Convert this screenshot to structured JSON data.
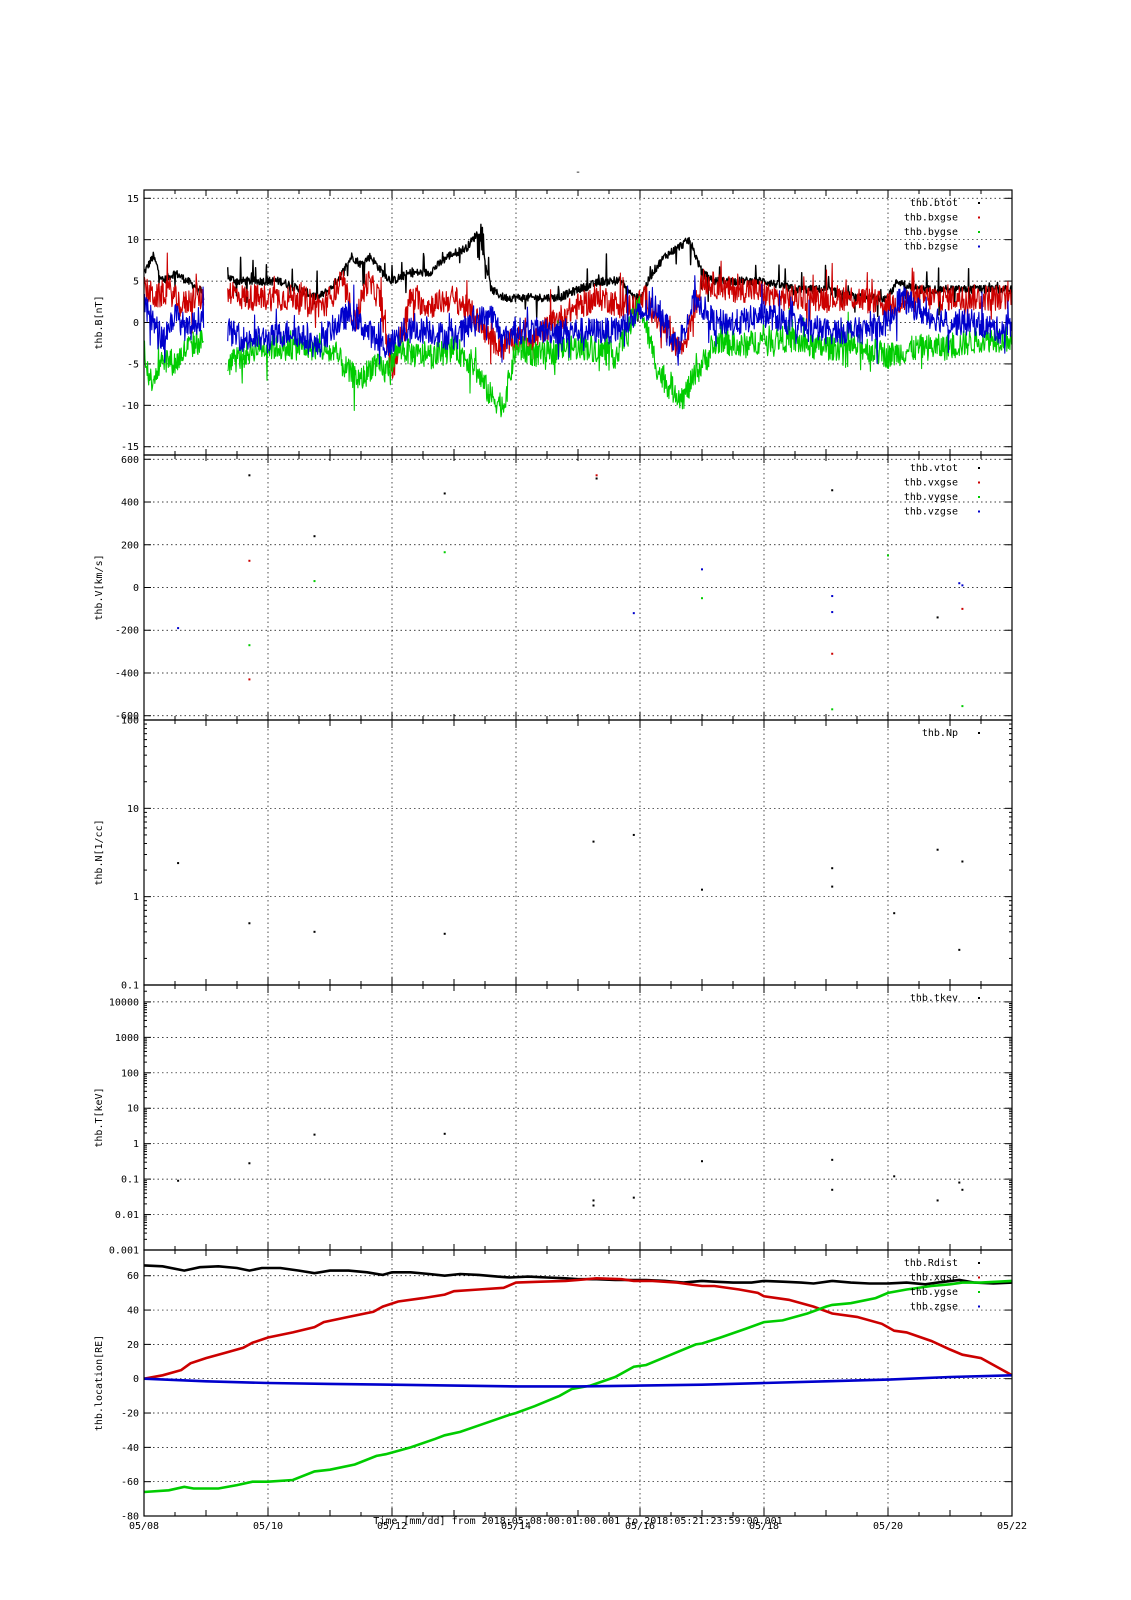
{
  "figure": {
    "title": "-",
    "xlabel": "Time [mm/dd]  from 2018:05:08:00:01:00.001  to  2018:05:21:23:59:00.001",
    "x_range_days": [
      0,
      14
    ],
    "x_tick_values": [
      0,
      2,
      4,
      6,
      8,
      10,
      12,
      14
    ],
    "x_tick_labels": [
      "05/08",
      "05/10",
      "05/12",
      "05/14",
      "05/16",
      "05/18",
      "05/20",
      "05/22"
    ]
  },
  "colors": {
    "black": "#000000",
    "red": "#cc0000",
    "green": "#00cc00",
    "blue": "#0000cc"
  },
  "chart_data": [
    {
      "type": "scatter",
      "ylabel": "thb.B[nT]",
      "scale": "linear",
      "ylim": [
        -16,
        16
      ],
      "yticks": [
        -15,
        -10,
        -5,
        0,
        5,
        10,
        15
      ],
      "ytick_labels": [
        "-15",
        "-10",
        "-5",
        "0",
        "5",
        "10",
        "15"
      ],
      "legend_position": "top-right",
      "series": [
        {
          "name": "thb.btot",
          "color": "#000000",
          "style": "dense",
          "x": [
            0,
            0.15,
            0.3,
            0.5,
            0.7,
            0.9,
            0.97,
            null,
            1.35,
            1.5,
            1.8,
            2.2,
            2.5,
            2.8,
            3.0,
            3.2,
            3.35,
            3.5,
            3.65,
            3.85,
            4.0,
            4.3,
            4.6,
            4.9,
            5.2,
            5.4,
            5.6,
            5.8,
            6.0,
            6.3,
            6.7,
            7.0,
            7.4,
            7.7,
            7.9,
            8.0,
            8.2,
            8.4,
            8.6,
            8.8,
            9.0,
            9.2,
            9.4,
            9.6,
            10.0,
            10.5,
            11.0,
            11.5,
            12.0,
            12.15,
            12.5,
            13.0,
            13.5,
            14.0
          ],
          "y": [
            6,
            8,
            5,
            6,
            5,
            4,
            3,
            null,
            5.5,
            5,
            5,
            5,
            4,
            3,
            4,
            6,
            8,
            7,
            8,
            6,
            5,
            6,
            6,
            8,
            9,
            11,
            4,
            3,
            3,
            3,
            3,
            4,
            5,
            5,
            3,
            3,
            6,
            8,
            9,
            10,
            6,
            5,
            5,
            5,
            5,
            4,
            4,
            3,
            3,
            5,
            4,
            4,
            4,
            4
          ]
        },
        {
          "name": "thb.bxgse",
          "color": "#cc0000",
          "style": "dense",
          "x": [
            0,
            0.2,
            0.4,
            0.6,
            0.8,
            0.97,
            null,
            1.35,
            1.6,
            2.0,
            2.5,
            2.9,
            3.2,
            3.4,
            3.6,
            3.8,
            4.0,
            4.3,
            4.6,
            5.0,
            5.3,
            5.6,
            5.8,
            6.0,
            6.3,
            6.6,
            7.0,
            7.4,
            7.7,
            7.9,
            8.1,
            8.3,
            8.5,
            8.7,
            9.0,
            9.4,
            9.8,
            10.2,
            10.6,
            11.0,
            11.5,
            12.0,
            12.5,
            13.0,
            13.5,
            14.0
          ],
          "y": [
            4,
            3,
            4,
            2,
            3,
            3,
            null,
            4,
            3,
            3,
            3,
            2,
            5,
            0,
            5,
            3,
            -6,
            3,
            2,
            3,
            1,
            -2,
            -3,
            -2,
            -2,
            0,
            2,
            3,
            2,
            2,
            3,
            0,
            -2,
            -3,
            5,
            4,
            4,
            3,
            3,
            3,
            3,
            2,
            3,
            3,
            3,
            3
          ]
        },
        {
          "name": "thb.bygse",
          "color": "#00cc00",
          "style": "dense",
          "x": [
            0,
            0.1,
            0.2,
            0.3,
            0.5,
            0.7,
            0.97,
            null,
            1.35,
            1.6,
            1.8,
            2.0,
            2.4,
            2.8,
            3.1,
            3.3,
            3.5,
            3.7,
            3.9,
            4.1,
            4.4,
            4.7,
            5.0,
            5.3,
            5.6,
            5.8,
            6.0,
            6.4,
            6.8,
            7.2,
            7.6,
            8.0,
            8.3,
            8.5,
            8.7,
            9.0,
            9.3,
            9.6,
            10.0,
            10.4,
            10.8,
            11.2,
            11.6,
            12.0,
            12.5,
            13.0,
            13.5,
            14.0
          ],
          "y": [
            -3,
            -7,
            -6,
            -4,
            -5,
            -3,
            -2,
            null,
            -5,
            -4,
            -3,
            -3,
            -3,
            -3,
            -4,
            -6,
            -7,
            -5,
            -6,
            -3,
            -4,
            -4,
            -3,
            -5,
            -9,
            -10,
            -3,
            -4,
            -3,
            -3,
            -4,
            2,
            -6,
            -8,
            -9,
            -5,
            -2,
            -3,
            -2,
            -2,
            -3,
            -3,
            -3,
            -4,
            -3,
            -3,
            -2,
            -2
          ]
        },
        {
          "name": "thb.bzgse",
          "color": "#0000cc",
          "style": "dense",
          "x": [
            0,
            0.15,
            0.3,
            0.5,
            0.7,
            0.97,
            null,
            1.35,
            1.6,
            2.0,
            2.4,
            2.8,
            3.0,
            3.3,
            3.6,
            3.9,
            4.2,
            4.6,
            5.0,
            5.3,
            5.6,
            5.8,
            6.0,
            6.4,
            6.8,
            7.2,
            7.6,
            8.0,
            8.3,
            8.6,
            8.9,
            9.2,
            9.6,
            10.0,
            10.4,
            10.8,
            11.2,
            11.6,
            12.0,
            12.2,
            12.6,
            13.0,
            13.4,
            13.8,
            14.0
          ],
          "y": [
            2,
            0,
            -2,
            1,
            -1,
            1,
            null,
            -1,
            -2,
            -2,
            -1,
            -3,
            -1,
            1,
            -1,
            -3,
            -1,
            -1,
            -2,
            0,
            1,
            -2,
            -1,
            -1,
            -1,
            -1,
            -1,
            1,
            2,
            -3,
            3,
            0,
            0,
            1,
            0,
            -1,
            -1,
            -1,
            0,
            3,
            1,
            0,
            0,
            -1,
            0
          ]
        }
      ]
    },
    {
      "type": "scatter",
      "ylabel": "thb.V[km/s]",
      "scale": "linear",
      "ylim": [
        -620,
        620
      ],
      "yticks": [
        -600,
        -400,
        -200,
        0,
        200,
        400,
        600
      ],
      "ytick_labels": [
        "-600",
        "-400",
        "-200",
        "0",
        "200",
        "400",
        "600"
      ],
      "legend_position": "top-right",
      "series": [
        {
          "name": "thb.vtot",
          "color": "#000000",
          "style": "points",
          "x": [
            1.7,
            2.75,
            4.85,
            7.3,
            11.1,
            12.8
          ],
          "y": [
            525,
            240,
            440,
            510,
            455,
            -140
          ]
        },
        {
          "name": "thb.vxgse",
          "color": "#cc0000",
          "style": "points",
          "x": [
            1.7,
            1.7,
            7.3,
            11.1,
            13.2
          ],
          "y": [
            125,
            -430,
            525,
            -310,
            -100
          ]
        },
        {
          "name": "thb.vygse",
          "color": "#00cc00",
          "style": "points",
          "x": [
            1.7,
            2.75,
            4.85,
            9.0,
            11.1,
            13.2,
            12.0
          ],
          "y": [
            -270,
            30,
            165,
            -50,
            -570,
            -555,
            150
          ]
        },
        {
          "name": "thb.vzgse",
          "color": "#0000cc",
          "style": "points",
          "x": [
            0.55,
            7.9,
            11.1,
            11.1,
            13.15,
            13.2,
            9.0
          ],
          "y": [
            -190,
            -120,
            -40,
            -115,
            20,
            10,
            85
          ]
        }
      ]
    },
    {
      "type": "scatter",
      "ylabel": "thb.N[1/cc]",
      "scale": "log",
      "ylim": [
        0.1,
        100
      ],
      "yticks": [
        0.1,
        1,
        10,
        100
      ],
      "ytick_labels": [
        "0.1",
        "1",
        "10",
        "100"
      ],
      "legend_position": "top-right",
      "series": [
        {
          "name": "thb.Np",
          "color": "#000000",
          "style": "points",
          "x": [
            0.55,
            1.7,
            2.75,
            4.85,
            7.25,
            7.9,
            9.0,
            11.1,
            11.1,
            12.1,
            12.8,
            13.15,
            13.2
          ],
          "y": [
            2.4,
            0.5,
            0.4,
            0.38,
            4.2,
            5.0,
            1.2,
            2.1,
            1.3,
            0.65,
            3.4,
            0.25,
            2.5
          ]
        }
      ]
    },
    {
      "type": "scatter",
      "ylabel": "thb.T[keV]",
      "scale": "log",
      "ylim": [
        0.001,
        30000
      ],
      "yticks": [
        0.001,
        0.01,
        0.1,
        1,
        10,
        100,
        1000,
        10000
      ],
      "ytick_labels": [
        "0.001",
        "0.01",
        "0.1",
        "1",
        "10",
        "100",
        "1000",
        "10000"
      ],
      "legend_position": "top-right",
      "series": [
        {
          "name": "thb.tkev",
          "color": "#000000",
          "style": "points",
          "x": [
            0.55,
            1.7,
            2.75,
            4.85,
            7.25,
            7.25,
            7.9,
            9.0,
            11.1,
            11.1,
            12.1,
            12.8,
            13.2,
            13.15
          ],
          "y": [
            0.09,
            0.28,
            1.8,
            1.9,
            0.025,
            0.018,
            0.03,
            0.32,
            0.35,
            0.05,
            0.12,
            0.025,
            0.05,
            0.08
          ]
        }
      ]
    },
    {
      "type": "line",
      "ylabel": "thb.location[RE]",
      "scale": "linear",
      "ylim": [
        -80,
        75
      ],
      "yticks": [
        -80,
        -60,
        -40,
        -20,
        0,
        20,
        40,
        60
      ],
      "ytick_labels": [
        "-80",
        "-60",
        "-40",
        "-20",
        "0",
        "20",
        "40",
        "60"
      ],
      "legend_position": "top-right",
      "series": [
        {
          "name": "thb.Rdist",
          "color": "#000000",
          "style": "line",
          "x": [
            0,
            0.3,
            0.65,
            0.9,
            1.2,
            1.5,
            1.7,
            1.9,
            2.2,
            2.5,
            2.75,
            3.0,
            3.3,
            3.6,
            3.85,
            4.0,
            4.3,
            4.6,
            4.85,
            5.1,
            5.4,
            5.7,
            5.9,
            6.2,
            6.5,
            6.8,
            7.0,
            7.3,
            7.6,
            7.9,
            8.1,
            8.4,
            8.7,
            9.0,
            9.2,
            9.5,
            9.8,
            10.0,
            10.3,
            10.6,
            10.8,
            11.1,
            11.4,
            11.7,
            12.0,
            12.3,
            12.6,
            12.8,
            13.15,
            13.4,
            13.7,
            14.0
          ],
          "y": [
            66,
            65.5,
            63,
            65,
            65.5,
            64.5,
            63,
            64.5,
            64.5,
            63,
            61.5,
            63,
            63,
            62,
            60.5,
            62,
            62,
            61,
            60,
            61,
            60.5,
            59.5,
            59,
            59.5,
            59,
            58.5,
            58,
            58,
            57.5,
            57.5,
            57.5,
            57,
            56,
            57,
            56.5,
            56,
            56,
            57,
            56.5,
            56,
            55.5,
            57,
            56,
            55.5,
            55.5,
            56,
            55,
            56,
            57.5,
            56,
            55.5,
            56
          ]
        },
        {
          "name": "thb.xgse",
          "color": "#cc0000",
          "style": "line",
          "x": [
            0,
            0.3,
            0.6,
            0.75,
            1.0,
            1.3,
            1.6,
            1.75,
            2.0,
            2.4,
            2.75,
            2.9,
            3.3,
            3.7,
            3.85,
            4.1,
            4.5,
            4.85,
            5.0,
            5.4,
            5.8,
            6.0,
            6.4,
            6.8,
            7.0,
            7.3,
            7.7,
            7.9,
            8.2,
            8.6,
            9.0,
            9.2,
            9.6,
            9.9,
            10.0,
            10.4,
            10.8,
            11.1,
            11.5,
            11.9,
            12.1,
            12.3,
            12.7,
            13.0,
            13.2,
            13.5,
            13.8,
            14.0
          ],
          "y": [
            0,
            2,
            5,
            9,
            12,
            15,
            18,
            21,
            24,
            27,
            30,
            33,
            36,
            39,
            42,
            45,
            47,
            49,
            51,
            52,
            53,
            56,
            56.5,
            57,
            57.5,
            58.5,
            58,
            57,
            57,
            56,
            54,
            54,
            52,
            50,
            48,
            46,
            42,
            38,
            36,
            32,
            28,
            27,
            22,
            17,
            14,
            12,
            6,
            2
          ]
        },
        {
          "name": "thb.ygse",
          "color": "#00cc00",
          "style": "line",
          "x": [
            0,
            0.4,
            0.65,
            0.8,
            1.2,
            1.5,
            1.75,
            2.0,
            2.4,
            2.75,
            3.0,
            3.4,
            3.75,
            3.9,
            4.3,
            4.7,
            4.85,
            5.1,
            5.5,
            5.9,
            6.0,
            6.3,
            6.7,
            6.9,
            7.2,
            7.6,
            7.9,
            8.1,
            8.5,
            8.9,
            9.0,
            9.3,
            9.7,
            10.0,
            10.3,
            10.7,
            11.0,
            11.1,
            11.4,
            11.8,
            12.0,
            12.3,
            12.7,
            13.0,
            13.2,
            13.5,
            14.0
          ],
          "y": [
            -66,
            -65,
            -63,
            -64,
            -64,
            -62,
            -60,
            -60,
            -59,
            -54,
            -53,
            -50,
            -45,
            -44,
            -40,
            -35,
            -33,
            -31,
            -26,
            -21,
            -20,
            -16,
            -10,
            -6,
            -4,
            1,
            7,
            8,
            14,
            20,
            20.5,
            24,
            29,
            33,
            34,
            38,
            42,
            43,
            44,
            47,
            50,
            52,
            54,
            55,
            56,
            56,
            57
          ]
        },
        {
          "name": "thb.zgse",
          "color": "#0000cc",
          "style": "line",
          "x": [
            0,
            1,
            2,
            3,
            4,
            5,
            6,
            7,
            8,
            9,
            10,
            11,
            12,
            13,
            14
          ],
          "y": [
            0,
            -1.5,
            -2.5,
            -3,
            -3.5,
            -4,
            -4.5,
            -4.5,
            -4,
            -3.5,
            -2.5,
            -1.5,
            -0.5,
            1,
            2
          ]
        }
      ]
    }
  ]
}
